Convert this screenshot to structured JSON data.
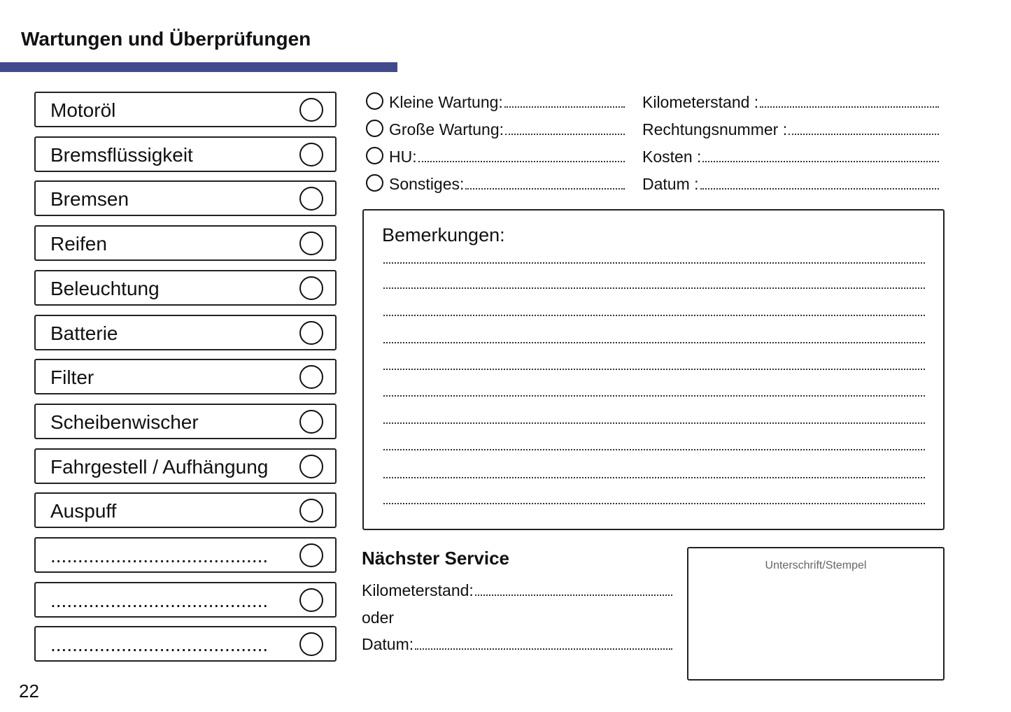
{
  "header": {
    "title": "Wartungen und Überprüfungen",
    "accent_color": "#434a8c"
  },
  "checklist": [
    "Motoröl",
    "Bremsflüssigkeit",
    "Bremsen",
    "Reifen",
    "Beleuchtung",
    "Batterie",
    "Filter",
    "Scheibenwischer",
    "Fahrgestell / Aufhängung",
    "Auspuff",
    "........................................",
    "........................................",
    "........................................"
  ],
  "service_types": [
    "Kleine Wartung:",
    "Große Wartung:",
    "HU:",
    "Sonstiges:"
  ],
  "fields": [
    "Kilometerstand :",
    "Rechtungsnummer :",
    "Kosten :",
    "Datum :"
  ],
  "remarks": {
    "title": "Bemerkungen:"
  },
  "next_service": {
    "title": "Nächster Service",
    "km_label": "Kilometerstand:",
    "or_label": "oder",
    "date_label": "Datum:"
  },
  "signature": {
    "label": "Unterschrift/Stempel"
  },
  "page_number": "22"
}
